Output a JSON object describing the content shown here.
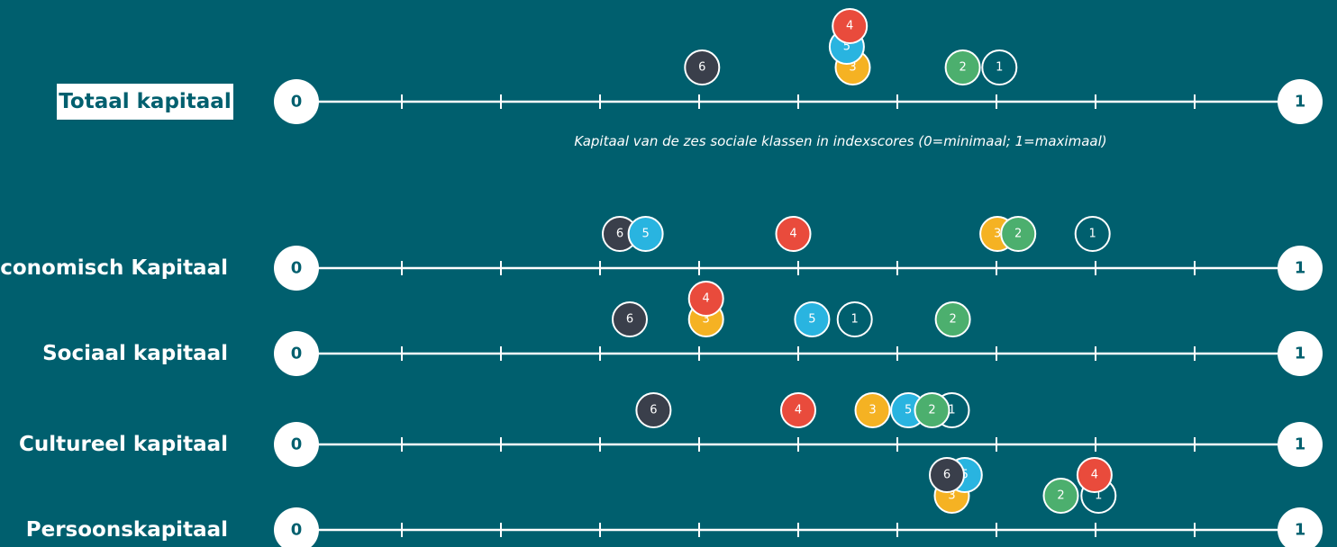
{
  "chart_data": [
    {
      "type": "dot",
      "title": "Totaal kapitaal",
      "xlabel": "Kapitaal van de zes sociale klassen in indexscores (0=minimaal; 1=maximaal)",
      "xlim": [
        0,
        1
      ],
      "xticks": [
        0,
        0.1,
        0.2,
        0.3,
        0.4,
        0.5,
        0.6,
        0.7,
        0.8,
        0.9,
        1
      ],
      "series": [
        {
          "name": "6",
          "color": "#3a3f4b",
          "values": [
            0.403
          ]
        },
        {
          "name": "3",
          "color": "#f5b223",
          "values": [
            0.555
          ]
        },
        {
          "name": "5",
          "color": "#29b4e0",
          "values": [
            0.549
          ]
        },
        {
          "name": "4",
          "color": "#e94b3c",
          "values": [
            0.552
          ]
        },
        {
          "name": "2",
          "color": "#4caf6e",
          "values": [
            0.666
          ]
        },
        {
          "name": "1",
          "color": "#005f6e",
          "values": [
            0.703
          ]
        }
      ]
    },
    {
      "type": "dot",
      "title": "Economisch Kapitaal",
      "xlim": [
        0,
        1
      ],
      "xticks": [
        0,
        0.1,
        0.2,
        0.3,
        0.4,
        0.5,
        0.6,
        0.7,
        0.8,
        0.9,
        1
      ],
      "series": [
        {
          "name": "6",
          "color": "#3a3f4b",
          "values": [
            0.32
          ]
        },
        {
          "name": "5",
          "color": "#29b4e0",
          "values": [
            0.346
          ]
        },
        {
          "name": "4",
          "color": "#e94b3c",
          "values": [
            0.495
          ]
        },
        {
          "name": "3",
          "color": "#f5b223",
          "values": [
            0.701
          ]
        },
        {
          "name": "2",
          "color": "#4caf6e",
          "values": [
            0.722
          ]
        },
        {
          "name": "1",
          "color": "#005f6e",
          "values": [
            0.797
          ]
        }
      ]
    },
    {
      "type": "dot",
      "title": "Sociaal kapitaal",
      "xlim": [
        0,
        1
      ],
      "xticks": [
        0,
        0.1,
        0.2,
        0.3,
        0.4,
        0.5,
        0.6,
        0.7,
        0.8,
        0.9,
        1
      ],
      "series": [
        {
          "name": "6",
          "color": "#3a3f4b",
          "values": [
            0.33
          ]
        },
        {
          "name": "3",
          "color": "#f5b223",
          "values": [
            0.407
          ]
        },
        {
          "name": "4",
          "color": "#e94b3c",
          "values": [
            0.407
          ]
        },
        {
          "name": "5",
          "color": "#29b4e0",
          "values": [
            0.514
          ]
        },
        {
          "name": "1",
          "color": "#005f6e",
          "values": [
            0.557
          ]
        },
        {
          "name": "2",
          "color": "#4caf6e",
          "values": [
            0.656
          ]
        }
      ]
    },
    {
      "type": "dot",
      "title": "Cultureel kapitaal",
      "xlim": [
        0,
        1
      ],
      "xticks": [
        0,
        0.1,
        0.2,
        0.3,
        0.4,
        0.5,
        0.6,
        0.7,
        0.8,
        0.9,
        1
      ],
      "series": [
        {
          "name": "6",
          "color": "#3a3f4b",
          "values": [
            0.354
          ]
        },
        {
          "name": "4",
          "color": "#e94b3c",
          "values": [
            0.5
          ]
        },
        {
          "name": "3",
          "color": "#f5b223",
          "values": [
            0.575
          ]
        },
        {
          "name": "5",
          "color": "#29b4e0",
          "values": [
            0.611
          ]
        },
        {
          "name": "1",
          "color": "#005f6e",
          "values": [
            0.655
          ]
        },
        {
          "name": "2",
          "color": "#4caf6e",
          "values": [
            0.635
          ]
        }
      ]
    },
    {
      "type": "dot",
      "title": "Persoonskapitaal",
      "xlim": [
        0,
        1
      ],
      "xticks": [
        0,
        0.1,
        0.2,
        0.3,
        0.4,
        0.5,
        0.6,
        0.7,
        0.8,
        0.9,
        1
      ],
      "series": [
        {
          "name": "3",
          "color": "#f5b223",
          "values": [
            0.655
          ]
        },
        {
          "name": "5",
          "color": "#29b4e0",
          "values": [
            0.668
          ]
        },
        {
          "name": "6",
          "color": "#3a3f4b",
          "values": [
            0.65
          ]
        },
        {
          "name": "2",
          "color": "#4caf6e",
          "values": [
            0.765
          ]
        },
        {
          "name": "1",
          "color": "#005f6e",
          "values": [
            0.803
          ]
        },
        {
          "name": "4",
          "color": "#e94b3c",
          "values": [
            0.799
          ]
        }
      ]
    }
  ]
}
